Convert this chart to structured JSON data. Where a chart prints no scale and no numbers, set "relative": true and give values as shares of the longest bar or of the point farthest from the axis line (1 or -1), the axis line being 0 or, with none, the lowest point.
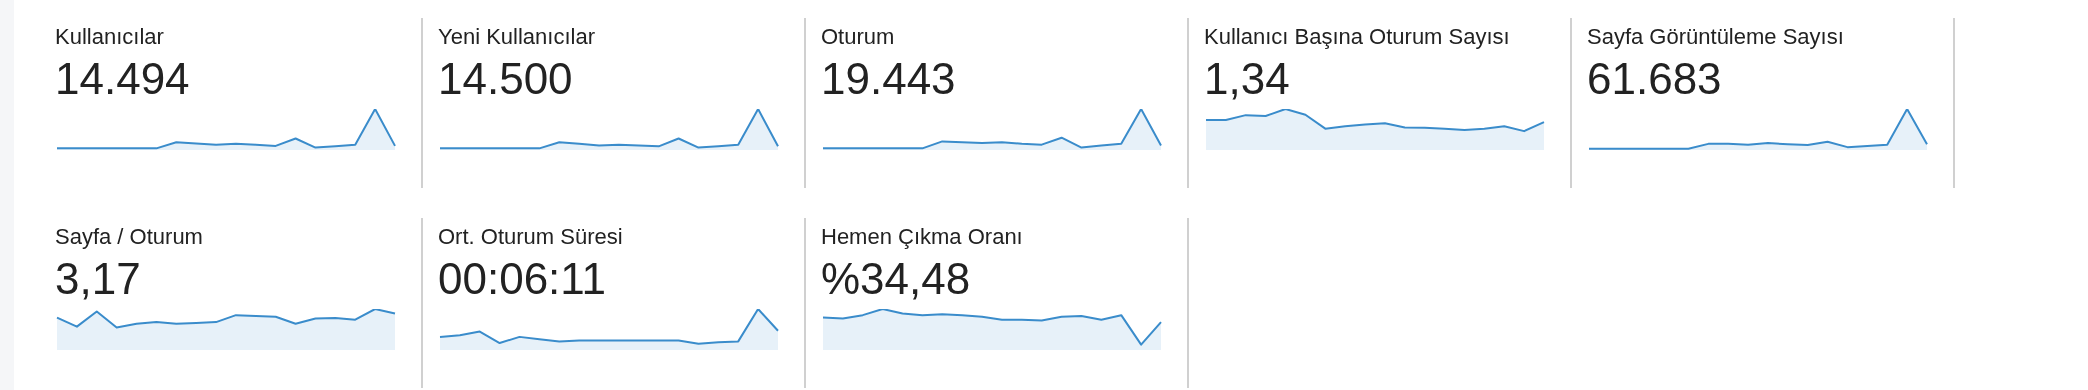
{
  "chart_data": [
    {
      "type": "area",
      "title": "Kullanıcılar",
      "subtitle": "14.494",
      "relative": true,
      "categories": [
        null,
        null,
        null,
        null,
        null,
        null,
        null,
        null,
        null,
        null,
        null,
        null,
        null,
        null,
        null,
        null,
        null,
        null
      ],
      "series": [
        {
          "color": "#3a8ccb",
          "values": [
            0.04,
            0.04,
            0.04,
            0.04,
            0.04,
            0.04,
            0.19,
            0.16,
            0.13,
            0.15,
            0.13,
            0.1,
            0.28,
            0.06,
            0.09,
            0.13,
            1,
            0.1
          ]
        }
      ]
    },
    {
      "type": "area",
      "title": "Yeni Kullanıcılar",
      "subtitle": "14.500",
      "relative": true,
      "categories": [
        null,
        null,
        null,
        null,
        null,
        null,
        null,
        null,
        null,
        null,
        null,
        null,
        null,
        null,
        null,
        null,
        null,
        null
      ],
      "series": [
        {
          "color": "#3a8ccb",
          "values": [
            0.04,
            0.04,
            0.04,
            0.04,
            0.04,
            0.04,
            0.19,
            0.15,
            0.11,
            0.13,
            0.11,
            0.09,
            0.28,
            0.06,
            0.09,
            0.13,
            1,
            0.09
          ]
        }
      ]
    },
    {
      "type": "area",
      "title": "Oturum",
      "subtitle": "19.443",
      "relative": true,
      "categories": [
        null,
        null,
        null,
        null,
        null,
        null,
        null,
        null,
        null,
        null,
        null,
        null,
        null,
        null,
        null,
        null,
        null,
        null
      ],
      "series": [
        {
          "color": "#3a8ccb",
          "values": [
            0.04,
            0.04,
            0.04,
            0.04,
            0.04,
            0.04,
            0.21,
            0.19,
            0.17,
            0.19,
            0.15,
            0.13,
            0.3,
            0.06,
            0.11,
            0.15,
            1,
            0.11
          ]
        }
      ]
    },
    {
      "type": "area",
      "title": "Kullanıcı Başına Oturum Sayısı",
      "subtitle": "1,34",
      "relative": true,
      "categories": [
        null,
        null,
        null,
        null,
        null,
        null,
        null,
        null,
        null,
        null,
        null,
        null,
        null,
        null,
        null,
        null,
        null,
        null
      ],
      "series": [
        {
          "color": "#3a8ccb",
          "values": [
            0.73,
            0.73,
            0.85,
            0.83,
            1,
            0.86,
            0.52,
            0.58,
            0.62,
            0.65,
            0.55,
            0.54,
            0.52,
            0.49,
            0.52,
            0.58,
            0.46,
            0.68
          ]
        }
      ]
    },
    {
      "type": "area",
      "title": "Sayfa Görüntüleme Sayısı",
      "subtitle": "61.683",
      "relative": true,
      "categories": [
        null,
        null,
        null,
        null,
        null,
        null,
        null,
        null,
        null,
        null,
        null,
        null,
        null,
        null,
        null,
        null,
        null,
        null
      ],
      "series": [
        {
          "color": "#3a8ccb",
          "values": [
            0.03,
            0.03,
            0.03,
            0.03,
            0.03,
            0.03,
            0.15,
            0.15,
            0.13,
            0.17,
            0.14,
            0.12,
            0.2,
            0.07,
            0.1,
            0.13,
            1,
            0.14
          ]
        }
      ]
    },
    {
      "type": "area",
      "title": "Sayfa / Oturum",
      "subtitle": "3,17",
      "relative": true,
      "categories": [
        null,
        null,
        null,
        null,
        null,
        null,
        null,
        null,
        null,
        null,
        null,
        null,
        null,
        null,
        null,
        null,
        null,
        null
      ],
      "series": [
        {
          "color": "#3a8ccb",
          "values": [
            0.79,
            0.57,
            0.94,
            0.55,
            0.64,
            0.68,
            0.64,
            0.66,
            0.68,
            0.85,
            0.83,
            0.81,
            0.64,
            0.77,
            0.78,
            0.74,
            1,
            0.89
          ]
        }
      ]
    },
    {
      "type": "area",
      "title": "Ort. Oturum Süresi",
      "subtitle": "00:06:11",
      "relative": true,
      "categories": [
        null,
        null,
        null,
        null,
        null,
        null,
        null,
        null,
        null,
        null,
        null,
        null,
        null,
        null,
        null,
        null,
        null,
        null
      ],
      "series": [
        {
          "color": "#3a8ccb",
          "values": [
            0.32,
            0.36,
            0.45,
            0.17,
            0.32,
            0.26,
            0.21,
            0.23,
            0.23,
            0.23,
            0.23,
            0.23,
            0.23,
            0.15,
            0.19,
            0.21,
            1,
            0.47
          ]
        }
      ]
    },
    {
      "type": "area",
      "title": "Hemen Çıkma Oranı",
      "subtitle": "%34,48",
      "relative": true,
      "categories": [
        null,
        null,
        null,
        null,
        null,
        null,
        null,
        null,
        null,
        null,
        null,
        null,
        null,
        null,
        null,
        null,
        null,
        null
      ],
      "series": [
        {
          "color": "#3a8ccb",
          "values": [
            0.79,
            0.77,
            0.85,
            1,
            0.89,
            0.85,
            0.87,
            0.85,
            0.81,
            0.74,
            0.74,
            0.72,
            0.81,
            0.83,
            0.74,
            0.85,
            0.13,
            0.68
          ]
        }
      ]
    }
  ]
}
